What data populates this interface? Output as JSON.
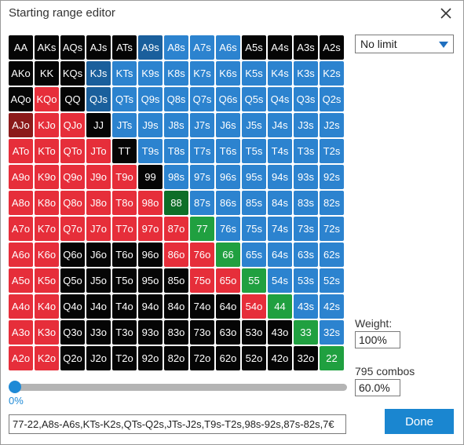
{
  "window": {
    "title": "Starting range editor",
    "close_icon": "close-icon"
  },
  "colors": {
    "black": "#050505",
    "blue": "#2c83cf",
    "red": "#e62e3a",
    "green": "#20a040",
    "dark_green": "#0e6e28",
    "dark_red": "#8b1a1a",
    "dark_blue": "#1a5f9c"
  },
  "grid": {
    "rows": [
      [
        "AA",
        "AKs",
        "AQs",
        "AJs",
        "ATs",
        "A9s",
        "A8s",
        "A7s",
        "A6s",
        "A5s",
        "A4s",
        "A3s",
        "A2s"
      ],
      [
        "AKo",
        "KK",
        "KQs",
        "KJs",
        "KTs",
        "K9s",
        "K8s",
        "K7s",
        "K6s",
        "K5s",
        "K4s",
        "K3s",
        "K2s"
      ],
      [
        "AQo",
        "KQo",
        "QQ",
        "QJs",
        "QTs",
        "Q9s",
        "Q8s",
        "Q7s",
        "Q6s",
        "Q5s",
        "Q4s",
        "Q3s",
        "Q2s"
      ],
      [
        "AJo",
        "KJo",
        "QJo",
        "JJ",
        "JTs",
        "J9s",
        "J8s",
        "J7s",
        "J6s",
        "J5s",
        "J4s",
        "J3s",
        "J2s"
      ],
      [
        "ATo",
        "KTo",
        "QTo",
        "JTo",
        "TT",
        "T9s",
        "T8s",
        "T7s",
        "T6s",
        "T5s",
        "T4s",
        "T3s",
        "T2s"
      ],
      [
        "A9o",
        "K9o",
        "Q9o",
        "J9o",
        "T9o",
        "99",
        "98s",
        "97s",
        "96s",
        "95s",
        "94s",
        "93s",
        "92s"
      ],
      [
        "A8o",
        "K8o",
        "Q8o",
        "J8o",
        "T8o",
        "98o",
        "88",
        "87s",
        "86s",
        "85s",
        "84s",
        "83s",
        "82s"
      ],
      [
        "A7o",
        "K7o",
        "Q7o",
        "J7o",
        "T7o",
        "97o",
        "87o",
        "77",
        "76s",
        "75s",
        "74s",
        "73s",
        "72s"
      ],
      [
        "A6o",
        "K6o",
        "Q6o",
        "J6o",
        "T6o",
        "96o",
        "86o",
        "76o",
        "66",
        "65s",
        "64s",
        "63s",
        "62s"
      ],
      [
        "A5o",
        "K5o",
        "Q5o",
        "J5o",
        "T5o",
        "95o",
        "85o",
        "75o",
        "65o",
        "55",
        "54s",
        "53s",
        "52s"
      ],
      [
        "A4o",
        "K4o",
        "Q4o",
        "J4o",
        "T4o",
        "94o",
        "84o",
        "74o",
        "64o",
        "54o",
        "44",
        "43s",
        "42s"
      ],
      [
        "A3o",
        "K3o",
        "Q3o",
        "J3o",
        "T3o",
        "93o",
        "83o",
        "73o",
        "63o",
        "53o",
        "43o",
        "33",
        "32s"
      ],
      [
        "A2o",
        "K2o",
        "Q2o",
        "J2o",
        "T2o",
        "92o",
        "82o",
        "72o",
        "62o",
        "52o",
        "42o",
        "32o",
        "22"
      ]
    ],
    "colors": [
      [
        "k",
        "k",
        "k",
        "k",
        "k",
        "db",
        "b",
        "b",
        "b",
        "k",
        "k",
        "k",
        "k"
      ],
      [
        "k",
        "k",
        "k",
        "db",
        "b",
        "b",
        "b",
        "b",
        "b",
        "b",
        "b",
        "b",
        "b"
      ],
      [
        "k",
        "r",
        "k",
        "db",
        "b",
        "b",
        "b",
        "b",
        "b",
        "b",
        "b",
        "b",
        "b"
      ],
      [
        "dr",
        "r",
        "r",
        "k",
        "b",
        "b",
        "b",
        "b",
        "b",
        "b",
        "b",
        "b",
        "b"
      ],
      [
        "r",
        "r",
        "r",
        "r",
        "k",
        "b",
        "b",
        "b",
        "b",
        "b",
        "b",
        "b",
        "b"
      ],
      [
        "r",
        "r",
        "r",
        "r",
        "r",
        "k",
        "b",
        "b",
        "b",
        "b",
        "b",
        "b",
        "b"
      ],
      [
        "r",
        "r",
        "r",
        "r",
        "r",
        "r",
        "dg",
        "b",
        "b",
        "b",
        "b",
        "b",
        "b"
      ],
      [
        "r",
        "r",
        "r",
        "r",
        "r",
        "r",
        "r",
        "g",
        "b",
        "b",
        "b",
        "b",
        "b"
      ],
      [
        "r",
        "r",
        "k",
        "k",
        "k",
        "k",
        "r",
        "r",
        "g",
        "b",
        "b",
        "b",
        "b"
      ],
      [
        "r",
        "r",
        "k",
        "k",
        "k",
        "k",
        "k",
        "r",
        "r",
        "g",
        "b",
        "b",
        "b"
      ],
      [
        "r",
        "r",
        "k",
        "k",
        "k",
        "k",
        "k",
        "k",
        "k",
        "r",
        "g",
        "b",
        "b"
      ],
      [
        "r",
        "r",
        "k",
        "k",
        "k",
        "k",
        "k",
        "k",
        "k",
        "k",
        "k",
        "g",
        "b"
      ],
      [
        "r",
        "r",
        "k",
        "k",
        "k",
        "k",
        "k",
        "k",
        "k",
        "k",
        "k",
        "k",
        "g"
      ]
    ]
  },
  "limit_select": {
    "value": "No limit"
  },
  "weight": {
    "label": "Weight:",
    "value": "100%"
  },
  "combos": {
    "label": "795 combos",
    "value": "60.0%"
  },
  "slider": {
    "value_label": "0%",
    "value": 0
  },
  "range_text": "77-22,A8s-A6s,KTs-K2s,QTs-Q2s,JTs-J2s,T9s-T2s,98s-92s,87s-82s,7€",
  "done_label": "Done"
}
